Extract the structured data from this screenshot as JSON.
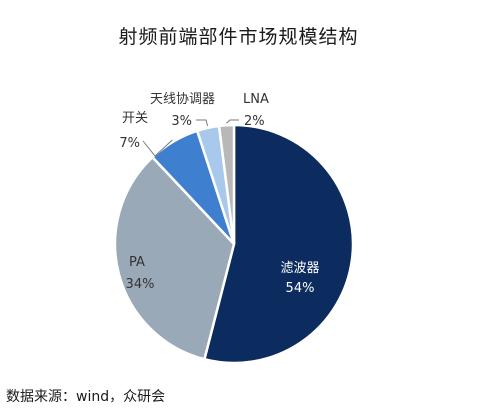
{
  "chart_data": {
    "type": "pie",
    "title": "射频前端部件市场规模结构",
    "slices": [
      {
        "label": "滤波器",
        "value": 54,
        "display": "54%",
        "color": "#0c2b5e"
      },
      {
        "label": "PA",
        "value": 34,
        "display": "34%",
        "color": "#9aa9b8"
      },
      {
        "label": "开关",
        "value": 7,
        "display": "7%",
        "color": "#3f7fd0"
      },
      {
        "label": "天线协调器",
        "value": 3,
        "display": "3%",
        "color": "#a9c9ec"
      },
      {
        "label": "LNA",
        "value": 2,
        "display": "2%",
        "color": "#b8b8b8"
      }
    ]
  },
  "source": "数据来源：wind，众研会"
}
